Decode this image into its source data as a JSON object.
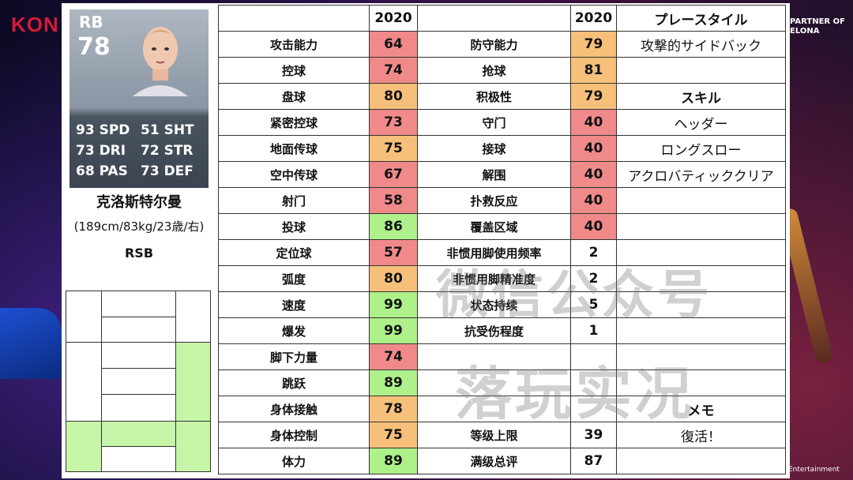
{
  "branding": {
    "left_logo": "KON",
    "right_logo_line1": "PARTNER OF",
    "right_logo_line2": "ELONA",
    "bottom_right": "Entertainment"
  },
  "card": {
    "position": "RB",
    "overall": "78",
    "stats": [
      [
        "93 SPD",
        "51 SHT"
      ],
      [
        "73 DRI",
        "72 STR"
      ],
      [
        "68 PAS",
        "73 DEF"
      ]
    ]
  },
  "player": {
    "name": "克洛斯特尔曼",
    "info": "(189cm/83kg/23歳/右)",
    "role": "RSB"
  },
  "table": {
    "header_year": "2020",
    "header_year_2": "2020",
    "header_playstyle": "プレースタイル",
    "rows": [
      {
        "label": "攻击能力",
        "value": "64",
        "color": "red",
        "label2": "防守能力",
        "value2": "79",
        "color2": "orange",
        "side": "攻撃的サイドバック",
        "side_bold": false
      },
      {
        "label": "控球",
        "value": "74",
        "color": "red",
        "label2": "抢球",
        "value2": "81",
        "color2": "orange",
        "side": "",
        "side_bold": false
      },
      {
        "label": "盘球",
        "value": "80",
        "color": "orange",
        "label2": "积极性",
        "value2": "79",
        "color2": "orange",
        "side": "スキル",
        "side_bold": true
      },
      {
        "label": "紧密控球",
        "value": "73",
        "color": "red",
        "label2": "守门",
        "value2": "40",
        "color2": "red",
        "side": "ヘッダー",
        "side_bold": false
      },
      {
        "label": "地面传球",
        "value": "75",
        "color": "orange",
        "label2": "接球",
        "value2": "40",
        "color2": "red",
        "side": "ロングスロー",
        "side_bold": false
      },
      {
        "label": "空中传球",
        "value": "67",
        "color": "red",
        "label2": "解围",
        "value2": "40",
        "color2": "red",
        "side": "アクロバティッククリア",
        "side_bold": false
      },
      {
        "label": "射门",
        "value": "58",
        "color": "red",
        "label2": "扑救反应",
        "value2": "40",
        "color2": "red",
        "side": "",
        "side_bold": false
      },
      {
        "label": "投球",
        "value": "86",
        "color": "green",
        "label2": "覆盖区域",
        "value2": "40",
        "color2": "red",
        "side": "",
        "side_bold": false
      },
      {
        "label": "定位球",
        "value": "57",
        "color": "red",
        "label2": "非惯用脚使用频率",
        "value2": "2",
        "color2": "none",
        "side": "",
        "side_bold": false
      },
      {
        "label": "弧度",
        "value": "80",
        "color": "orange",
        "label2": "非惯用脚精准度",
        "value2": "2",
        "color2": "none",
        "side": "",
        "side_bold": false
      },
      {
        "label": "速度",
        "value": "99",
        "color": "green",
        "label2": "状态持续",
        "value2": "5",
        "color2": "none",
        "side": "",
        "side_bold": false
      },
      {
        "label": "爆发",
        "value": "99",
        "color": "green",
        "label2": "抗受伤程度",
        "value2": "1",
        "color2": "none",
        "side": "",
        "side_bold": false
      },
      {
        "label": "脚下力量",
        "value": "74",
        "color": "red",
        "label2": "",
        "value2": "",
        "color2": "none",
        "side": "",
        "side_bold": false
      },
      {
        "label": "跳跃",
        "value": "89",
        "color": "green",
        "label2": "",
        "value2": "",
        "color2": "none",
        "side": "",
        "side_bold": false
      },
      {
        "label": "身体接触",
        "value": "78",
        "color": "orange",
        "label2": "",
        "value2": "",
        "color2": "none",
        "side": "メモ",
        "side_bold": true
      },
      {
        "label": "身体控制",
        "value": "75",
        "color": "orange",
        "label2": "等级上限",
        "value2": "39",
        "color2": "none",
        "side": "復活！",
        "side_bold": false
      },
      {
        "label": "体力",
        "value": "89",
        "color": "green",
        "label2": "满级总评",
        "value2": "87",
        "color2": "none",
        "side": "",
        "side_bold": false
      }
    ]
  },
  "watermark": {
    "line1": "微信公众号",
    "line2": "落玩实况"
  },
  "colors": {
    "red": "#f08a8a",
    "orange": "#f6c07a",
    "green": "#aef08a"
  }
}
